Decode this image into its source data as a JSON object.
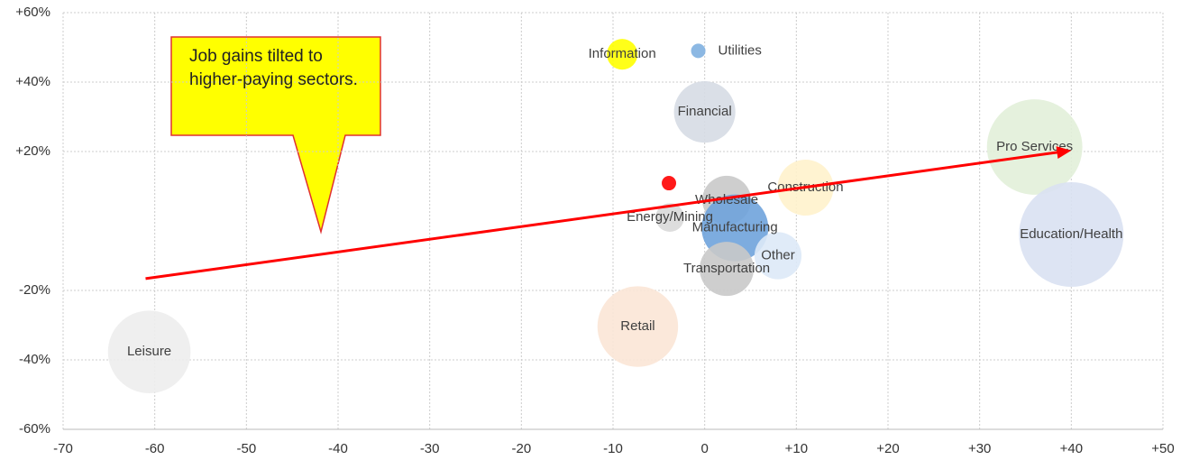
{
  "chart_data": {
    "type": "bubble",
    "annotation": "Job gains tilted to higher-paying sectors.",
    "categories": [
      "Information",
      "Utilities",
      "Financial",
      "Pro Services",
      "Education/Health",
      "Construction",
      null,
      "Wholesale",
      "Energy/Mining",
      "Manufacturing",
      "Other",
      "Transportation",
      "Retail",
      "Leisure"
    ],
    "x": [
      -9,
      -0.7,
      0,
      36,
      40,
      11,
      -3.9,
      2.4,
      -3.8,
      3.3,
      8,
      2.4,
      -7.3,
      -60.6
    ],
    "values": [
      48,
      49,
      31.4,
      21.3,
      -3.9,
      9.6,
      10.9,
      6,
      1,
      -2,
      -10,
      -13.8,
      -30.4,
      -37.7
    ],
    "sizes": [
      2.9,
      0.64,
      11.6,
      28,
      33.6,
      9.6,
      0.64,
      7.3,
      2.5,
      13.7,
      6.8,
      9,
      20,
      21
    ],
    "colors": [
      "#ffff00",
      "#7fb0e0",
      "#d6dce4",
      "#e2efd9",
      "#d9e1f2",
      "#fff2cc",
      "#ff0000",
      "#c9c9c9",
      "#d9d9d9",
      "#6fa3db",
      "#dde9f7",
      "#c9c9c9",
      "#fbe5d6",
      "#ededed"
    ],
    "trend": {
      "x": [
        -61,
        40
      ],
      "y": [
        -16.6,
        20.3
      ],
      "color": "#ff0000"
    },
    "xlim": [
      -70,
      50
    ],
    "xticks": [
      -70,
      -60,
      -50,
      -40,
      -30,
      -20,
      -10,
      0,
      {
        "value": 10,
        "label": "+10"
      },
      {
        "value": 20,
        "label": "+20"
      },
      {
        "value": 30,
        "label": "+30"
      },
      {
        "value": 40,
        "label": "+40"
      },
      {
        "value": 50,
        "label": "+50"
      }
    ],
    "ylim": [
      -60,
      60
    ],
    "yticks": [
      {
        "value": -60,
        "label": "-60%"
      },
      {
        "value": -40,
        "label": "-40%"
      },
      {
        "value": -20,
        "label": "-20%"
      },
      {
        "value": 20,
        "label": "+20%"
      },
      {
        "value": 40,
        "label": "+40%"
      },
      {
        "value": 60,
        "label": "+60%"
      }
    ],
    "grid": true
  }
}
